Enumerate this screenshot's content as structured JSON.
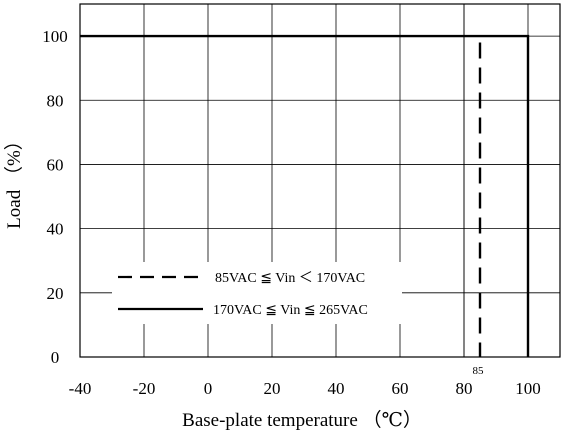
{
  "chart_data": {
    "type": "line",
    "title": "",
    "xlabel": "Base-plate temperature （℃）",
    "ylabel": "Load （%）",
    "xlim": [
      -40,
      110
    ],
    "ylim": [
      0,
      110
    ],
    "x_ticks": [
      -40,
      -20,
      0,
      20,
      40,
      60,
      80,
      100
    ],
    "y_ticks": [
      0,
      20,
      40,
      60,
      80,
      100
    ],
    "x_tick_labels": [
      "-40",
      "-20",
      "0",
      "20",
      "40",
      "60",
      "80",
      "100"
    ],
    "y_tick_labels": [
      "0",
      "20",
      "40",
      "60",
      "80",
      "100"
    ],
    "grid": true,
    "legend_position": "lower-left",
    "annotation": "85",
    "series": [
      {
        "name": "85VAC ≦ Vin ＜ 170VAC",
        "style": "dashed",
        "color": "#000000",
        "x": [
          85,
          85
        ],
        "y": [
          98,
          0
        ]
      },
      {
        "name": "170VAC ≦ Vin ≦ 265VAC",
        "style": "solid",
        "color": "#000000",
        "x": [
          -40,
          100,
          100
        ],
        "y": [
          100,
          100,
          0
        ]
      }
    ]
  }
}
